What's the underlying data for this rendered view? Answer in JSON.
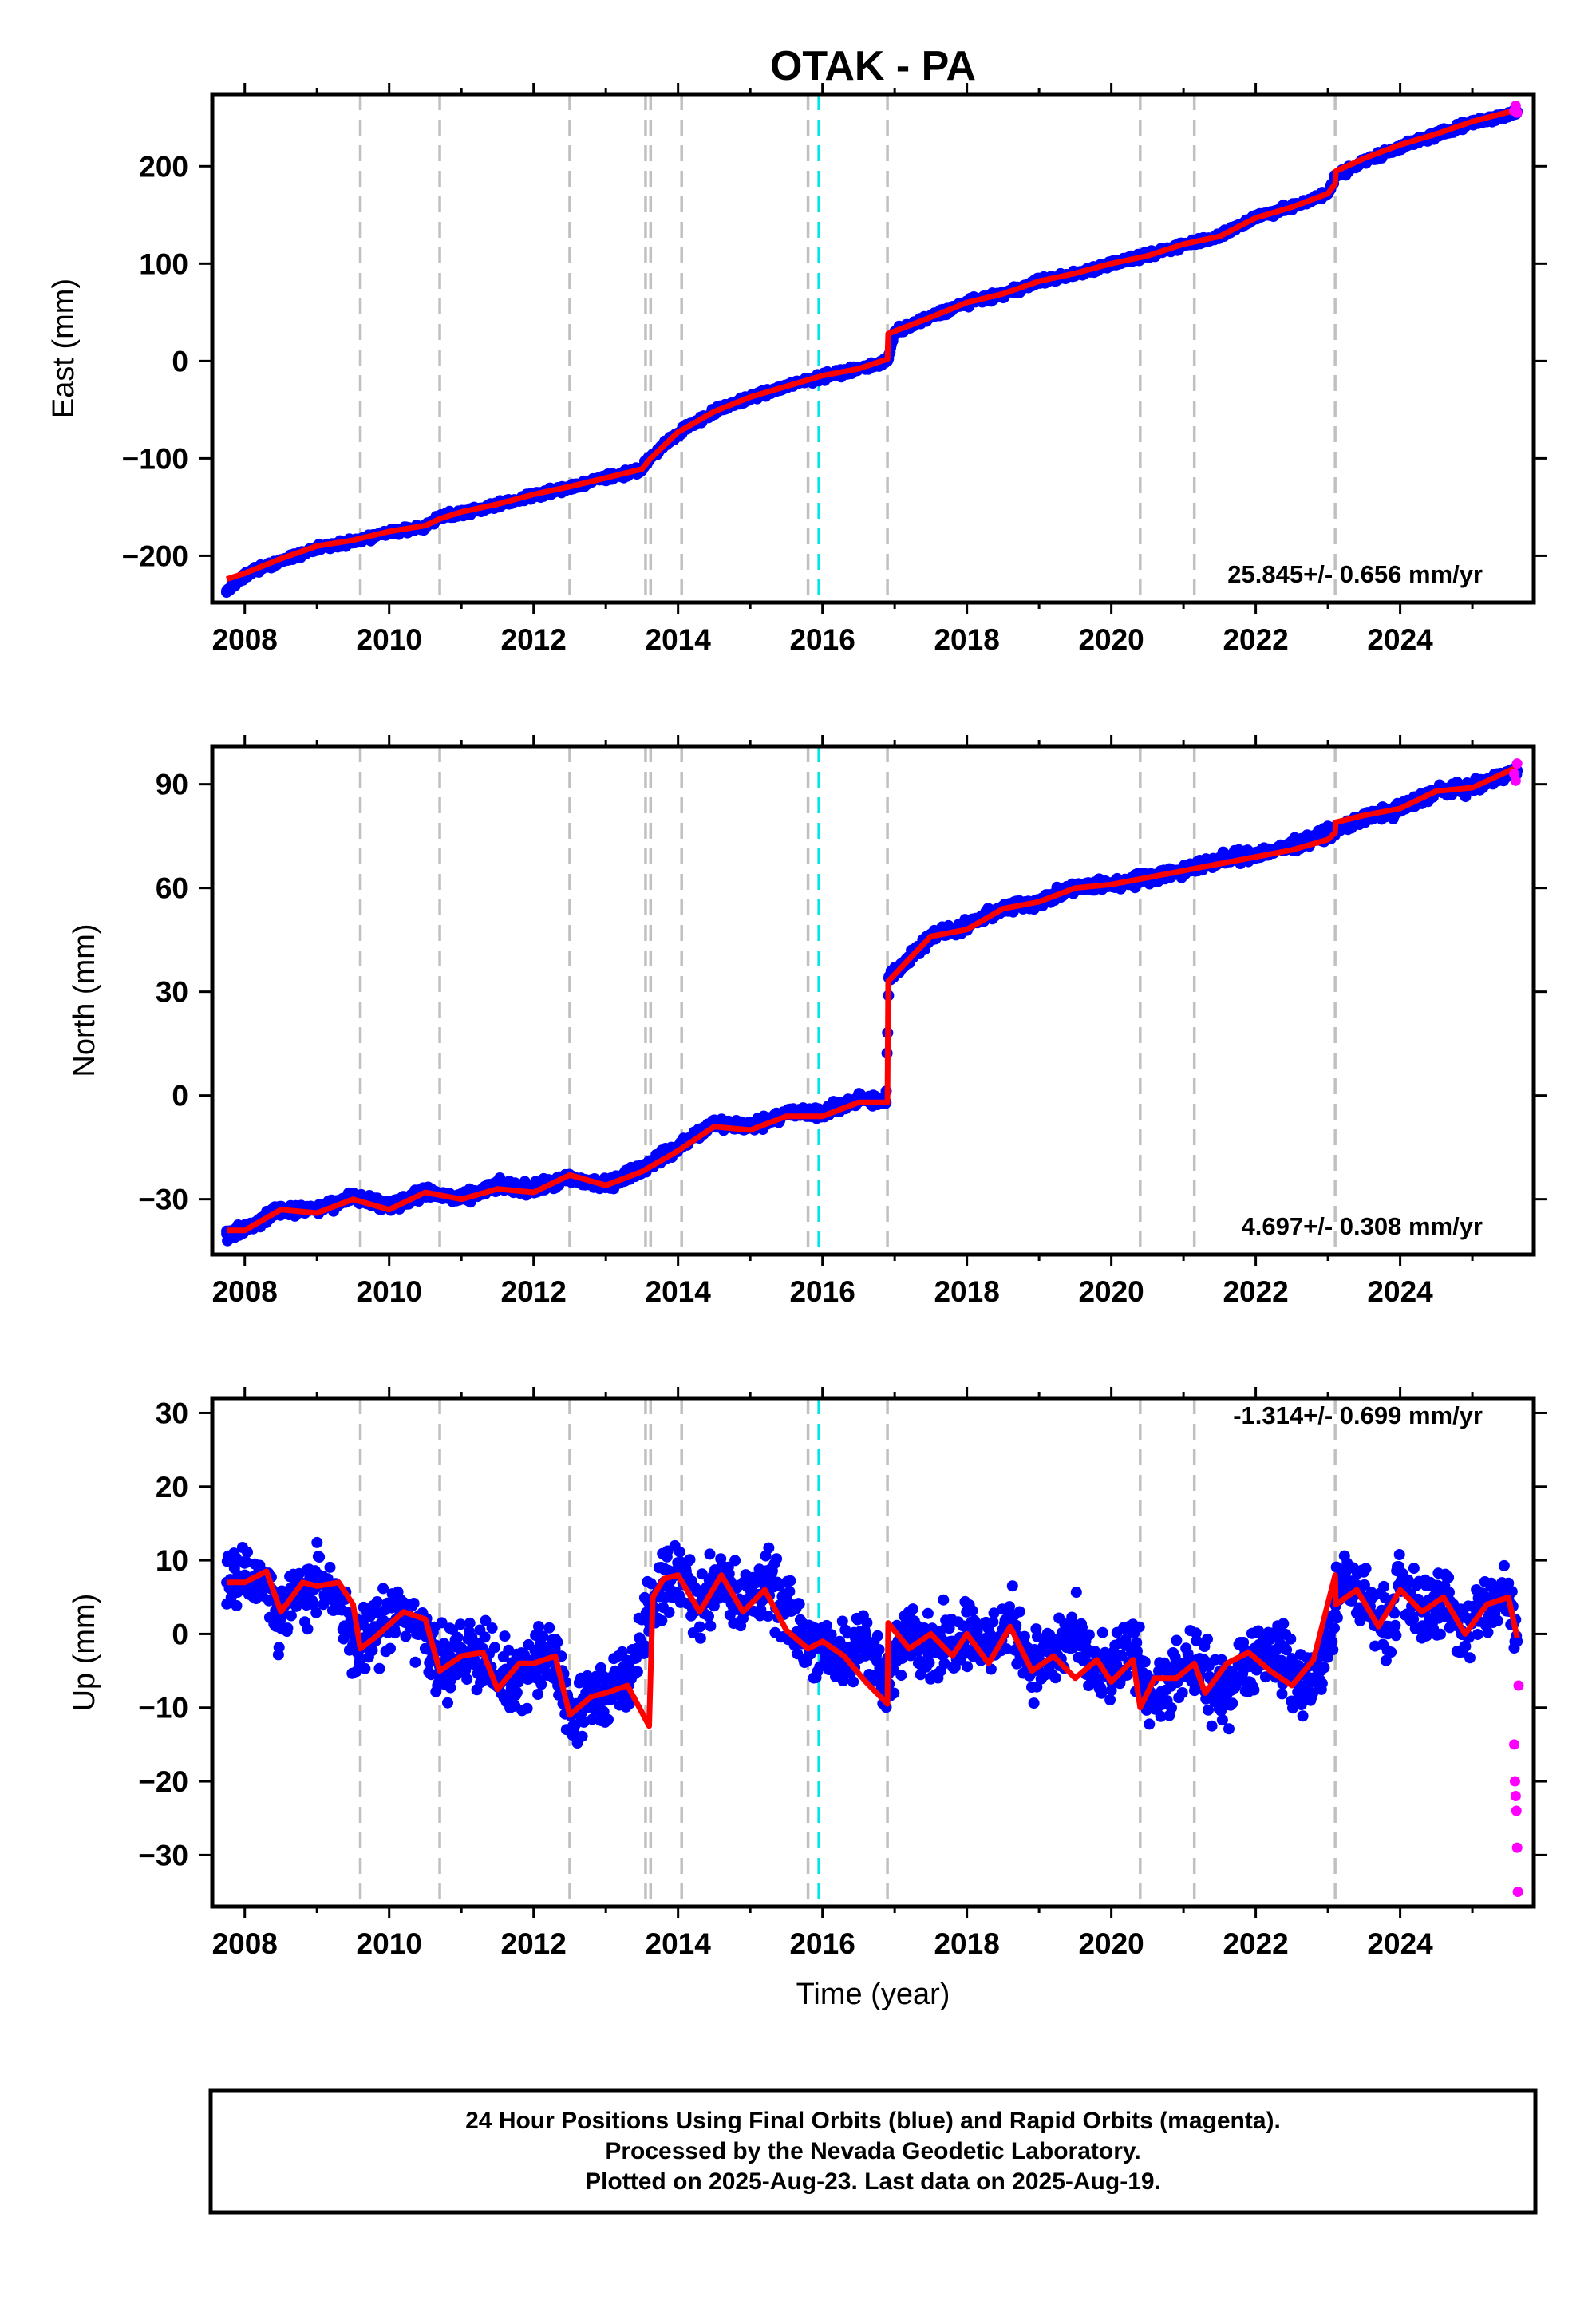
{
  "title": "OTAK - PA",
  "footer": {
    "lines": [
      "24 Hour Positions Using Final Orbits (blue) and Rapid Orbits (magenta).",
      "Processed by the Nevada Geodetic Laboratory.",
      "Plotted on 2025-Aug-23. Last data on 2025-Aug-19."
    ]
  },
  "colors": {
    "final_orbits": "#0000ff",
    "rapid_orbits": "#ff00ff",
    "model_fit": "#ff0000",
    "event_lines": "#c0c0c0",
    "highlight_line": "#00e5e5"
  },
  "chart_data": [
    {
      "type": "scatter",
      "panel": "east",
      "title": "OTAK - PA",
      "ylabel": "East (mm)",
      "xlabel": "",
      "xlim": [
        2007.55,
        2025.85
      ],
      "ylim": [
        -248,
        274
      ],
      "yticks": [
        -200,
        -100,
        0,
        100,
        200
      ],
      "ytick_labels": [
        "−200",
        "−100",
        "0",
        "100",
        "200"
      ],
      "xticks": [
        2008,
        2010,
        2012,
        2014,
        2016,
        2018,
        2020,
        2022,
        2024
      ],
      "xtick_labels": [
        "2008",
        "2010",
        "2012",
        "2014",
        "2016",
        "2018",
        "2020",
        "2022",
        "2024"
      ],
      "rate_label": "25.845+/- 0.656 mm/yr",
      "grid": false,
      "event_lines": [
        2009.6,
        2010.7,
        2012.5,
        2013.55,
        2013.62,
        2014.05,
        2015.8,
        2016.9,
        2020.4,
        2021.15,
        2023.1
      ],
      "highlight_line": 2015.95,
      "series": [
        {
          "role": "final_orbits",
          "x": [
            2007.75,
            2008.0,
            2008.5,
            2009.0,
            2009.5,
            2010.0,
            2010.5,
            2010.7,
            2011.0,
            2011.5,
            2012.0,
            2012.5,
            2013.0,
            2013.5,
            2013.62,
            2014.0,
            2014.5,
            2015.0,
            2015.5,
            2016.0,
            2016.5,
            2016.9,
            2017.0,
            2017.5,
            2018.0,
            2018.5,
            2019.0,
            2019.5,
            2020.0,
            2020.5,
            2021.0,
            2021.5,
            2022.0,
            2022.5,
            2023.0,
            2023.1,
            2023.5,
            2024.0,
            2024.5,
            2025.0,
            2025.5,
            2025.62
          ],
          "y": [
            -236,
            -220,
            -205,
            -192,
            -185,
            -176,
            -170,
            -160,
            -156,
            -148,
            -138,
            -130,
            -120,
            -112,
            -98,
            -74,
            -52,
            -38,
            -26,
            -16,
            -8,
            0,
            30,
            45,
            60,
            68,
            82,
            89,
            100,
            108,
            120,
            128,
            148,
            158,
            172,
            190,
            205,
            220,
            232,
            245,
            252,
            256
          ]
        },
        {
          "role": "model_fit",
          "x": [
            2007.75,
            2008.0,
            2008.5,
            2009.0,
            2009.5,
            2010.0,
            2010.5,
            2010.7,
            2011.0,
            2011.5,
            2012.0,
            2012.5,
            2013.0,
            2013.5,
            2013.62,
            2014.0,
            2014.5,
            2015.0,
            2015.5,
            2016.0,
            2016.5,
            2016.9,
            2016.91,
            2017.5,
            2018.0,
            2018.5,
            2019.0,
            2019.5,
            2020.0,
            2020.5,
            2021.0,
            2021.5,
            2022.0,
            2022.5,
            2023.0,
            2023.1,
            2023.11,
            2023.5,
            2024.0,
            2024.5,
            2025.0,
            2025.62
          ],
          "y": [
            -224,
            -218,
            -203,
            -190,
            -184,
            -175,
            -169,
            -162,
            -155,
            -147,
            -137,
            -129,
            -120,
            -111,
            -100,
            -73,
            -52,
            -37,
            -26,
            -15,
            -8,
            2,
            28,
            45,
            60,
            69,
            82,
            90,
            100,
            108,
            120,
            128,
            147,
            158,
            172,
            182,
            195,
            208,
            222,
            233,
            246,
            258
          ]
        },
        {
          "role": "rapid_orbits",
          "x": [
            2025.58,
            2025.6,
            2025.62
          ],
          "y": [
            257,
            262,
            255
          ]
        }
      ]
    },
    {
      "type": "scatter",
      "panel": "north",
      "title": "",
      "ylabel": "North (mm)",
      "xlabel": "",
      "xlim": [
        2007.55,
        2025.85
      ],
      "ylim": [
        -46,
        101
      ],
      "yticks": [
        -30,
        0,
        30,
        60,
        90
      ],
      "ytick_labels": [
        "−30",
        "0",
        "30",
        "60",
        "90"
      ],
      "xticks": [
        2008,
        2010,
        2012,
        2014,
        2016,
        2018,
        2020,
        2022,
        2024
      ],
      "xtick_labels": [
        "2008",
        "2010",
        "2012",
        "2014",
        "2016",
        "2018",
        "2020",
        "2022",
        "2024"
      ],
      "rate_label": "4.697+/- 0.308 mm/yr",
      "grid": false,
      "event_lines": [
        2009.6,
        2010.7,
        2012.5,
        2013.55,
        2013.62,
        2014.05,
        2015.8,
        2016.9,
        2020.4,
        2021.15,
        2023.1
      ],
      "highlight_line": 2015.95,
      "series": [
        {
          "role": "final_orbits",
          "x": [
            2007.75,
            2008.0,
            2008.5,
            2009.0,
            2009.5,
            2010.0,
            2010.5,
            2011.0,
            2011.5,
            2012.0,
            2012.5,
            2013.0,
            2013.5,
            2014.0,
            2014.5,
            2015.0,
            2015.5,
            2016.0,
            2016.5,
            2016.88,
            2016.92,
            2017.5,
            2018.0,
            2018.5,
            2019.0,
            2019.5,
            2020.0,
            2020.5,
            2021.0,
            2021.5,
            2022.0,
            2022.5,
            2023.0,
            2023.5,
            2024.0,
            2024.5,
            2025.0,
            2025.62
          ],
          "y": [
            -40,
            -39,
            -33,
            -33,
            -29,
            -32,
            -28,
            -30,
            -26,
            -27,
            -24,
            -26,
            -21,
            -15,
            -8,
            -9,
            -5,
            -5,
            -1,
            -2,
            34,
            46,
            49,
            54,
            56,
            60,
            61,
            63,
            65,
            68,
            70,
            72,
            76,
            80,
            83,
            88,
            89,
            94
          ]
        },
        {
          "role": "model_fit",
          "x": [
            2007.75,
            2008.0,
            2008.5,
            2009.0,
            2009.5,
            2010.0,
            2010.5,
            2011.0,
            2011.5,
            2012.0,
            2012.5,
            2013.0,
            2013.5,
            2014.0,
            2014.5,
            2015.0,
            2015.5,
            2016.0,
            2016.5,
            2016.9,
            2016.91,
            2017.5,
            2018.0,
            2018.5,
            2019.0,
            2019.5,
            2020.0,
            2020.5,
            2021.0,
            2021.5,
            2022.0,
            2022.5,
            2023.0,
            2023.1,
            2023.11,
            2023.5,
            2024.0,
            2024.5,
            2025.0,
            2025.62
          ],
          "y": [
            -39,
            -39,
            -33,
            -34,
            -30,
            -33,
            -28,
            -30,
            -27,
            -28,
            -23,
            -26,
            -22,
            -16,
            -9,
            -10,
            -6,
            -6,
            -2,
            -2,
            33,
            46,
            48,
            54,
            56,
            60,
            61,
            63,
            65,
            67,
            69,
            71,
            74,
            76,
            79,
            81,
            83,
            88,
            89,
            95
          ]
        },
        {
          "role": "rapid_orbits",
          "x": [
            2025.58,
            2025.6,
            2025.62
          ],
          "y": [
            93,
            91,
            96
          ]
        }
      ]
    },
    {
      "type": "scatter",
      "panel": "up",
      "title": "",
      "ylabel": "Up (mm)",
      "xlabel": "Time (year)",
      "xlim": [
        2007.55,
        2025.85
      ],
      "ylim": [
        -37,
        32
      ],
      "yticks": [
        -30,
        -20,
        -10,
        0,
        10,
        20,
        30
      ],
      "ytick_labels": [
        "−30",
        "−20",
        "−10",
        "0",
        "10",
        "20",
        "30"
      ],
      "xticks": [
        2008,
        2010,
        2012,
        2014,
        2016,
        2018,
        2020,
        2022,
        2024
      ],
      "xtick_labels": [
        "2008",
        "2010",
        "2012",
        "2014",
        "2016",
        "2018",
        "2020",
        "2022",
        "2024"
      ],
      "rate_label": "-1.314+/- 0.699 mm/yr",
      "grid": false,
      "event_lines": [
        2009.6,
        2010.7,
        2012.5,
        2013.55,
        2013.62,
        2014.05,
        2015.8,
        2016.9,
        2020.4,
        2021.15,
        2023.1
      ],
      "highlight_line": 2015.95,
      "series": [
        {
          "role": "final_orbits",
          "x": [
            2007.75,
            2008.0,
            2008.3,
            2008.5,
            2008.8,
            2009.0,
            2009.3,
            2009.6,
            2009.8,
            2010.2,
            2010.5,
            2010.7,
            2011.0,
            2011.3,
            2011.5,
            2011.8,
            2012.0,
            2012.3,
            2012.5,
            2012.8,
            2013.0,
            2013.3,
            2013.6,
            2013.8,
            2014.0,
            2014.3,
            2014.6,
            2014.9,
            2015.2,
            2015.5,
            2015.8,
            2016.0,
            2016.3,
            2016.6,
            2016.9,
            2017.2,
            2017.5,
            2017.8,
            2018.0,
            2018.3,
            2018.6,
            2018.9,
            2019.2,
            2019.5,
            2019.8,
            2020.0,
            2020.3,
            2020.6,
            2020.9,
            2021.2,
            2021.5,
            2021.8,
            2022.0,
            2022.3,
            2022.6,
            2022.9,
            2023.2,
            2023.5,
            2023.8,
            2024.0,
            2024.3,
            2024.6,
            2024.9,
            2025.2,
            2025.5,
            2025.62
          ],
          "y": [
            7,
            8,
            7,
            2,
            6,
            7,
            4,
            -2,
            1,
            3,
            0,
            -4,
            -3,
            -2,
            -7,
            -5,
            -4,
            -3,
            -11,
            -9,
            -8,
            -7,
            3,
            7,
            8,
            4,
            8,
            4,
            7,
            3,
            -1,
            -1,
            -4,
            0,
            -8,
            2,
            -2,
            -1,
            1,
            -2,
            2,
            -4,
            -3,
            0,
            -6,
            -5,
            -2,
            -9,
            -6,
            -4,
            -9,
            -4,
            -3,
            -2,
            -7,
            -5,
            7,
            5,
            1,
            6,
            3,
            5,
            0,
            4,
            5,
            -1
          ]
        },
        {
          "role": "model_fit",
          "x": [
            2007.75,
            2008.0,
            2008.3,
            2008.5,
            2008.8,
            2009.0,
            2009.3,
            2009.5,
            2009.6,
            2009.8,
            2010.2,
            2010.5,
            2010.7,
            2011.0,
            2011.3,
            2011.5,
            2011.8,
            2012.0,
            2012.3,
            2012.5,
            2012.8,
            2013.0,
            2013.3,
            2013.6,
            2013.65,
            2013.8,
            2014.0,
            2014.3,
            2014.6,
            2014.9,
            2015.2,
            2015.5,
            2015.8,
            2016.0,
            2016.3,
            2016.6,
            2016.9,
            2016.91,
            2017.2,
            2017.5,
            2017.8,
            2018.0,
            2018.3,
            2018.6,
            2018.9,
            2019.2,
            2019.5,
            2019.8,
            2020.0,
            2020.3,
            2020.4,
            2020.6,
            2020.9,
            2021.15,
            2021.3,
            2021.6,
            2021.9,
            2022.2,
            2022.5,
            2022.8,
            2023.1,
            2023.11,
            2023.4,
            2023.7,
            2024.0,
            2024.3,
            2024.6,
            2024.9,
            2025.2,
            2025.5,
            2025.62
          ],
          "y": [
            7,
            7,
            8.5,
            3,
            7,
            6.5,
            7,
            4,
            -2,
            -0.5,
            3,
            2,
            -5,
            -3,
            -2.5,
            -7.5,
            -4,
            -4,
            -3,
            -11,
            -8.5,
            -8,
            -7,
            -12.5,
            5,
            7.5,
            8,
            3,
            8,
            3,
            6,
            0.5,
            -2,
            -1,
            -3,
            -6.5,
            -9.5,
            1.5,
            -2,
            0,
            -3,
            0,
            -4,
            1,
            -5,
            -3,
            -6,
            -3.5,
            -6.5,
            -3.5,
            -10,
            -6,
            -6,
            -4,
            -8,
            -4,
            -2.5,
            -5,
            -7,
            -3.5,
            8,
            4,
            6,
            1,
            6,
            3,
            5,
            0,
            4,
            5,
            -0.5
          ]
        },
        {
          "role": "rapid_orbits",
          "x": [
            2025.58,
            2025.59,
            2025.6,
            2025.61,
            2025.62,
            2025.63,
            2025.64
          ],
          "y": [
            -15,
            -20,
            -22,
            -24,
            -29,
            -35,
            -7
          ]
        }
      ]
    }
  ]
}
